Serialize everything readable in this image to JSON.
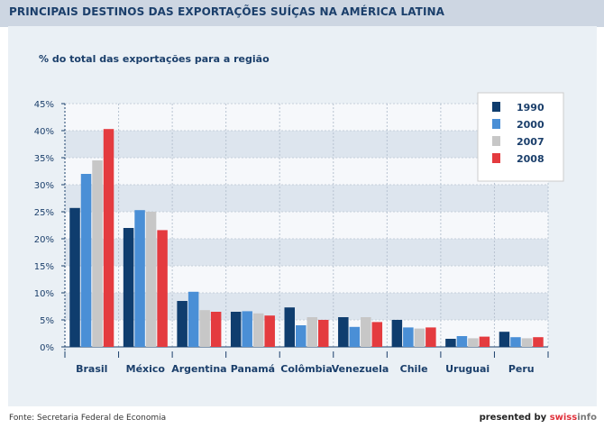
{
  "header": {
    "title": "PRINCIPAIS DESTINOS DAS EXPORTAÇÕES SUÍÇAS NA AMÉRICA LATINA"
  },
  "footer": {
    "source": "Fonte: Secretaria Federal de Economia",
    "presented_by": "presented by",
    "brand_swiss": "swiss",
    "brand_info": "info"
  },
  "chart_data": {
    "type": "bar",
    "title": "% do total das exportações para a região",
    "xlabel": "",
    "ylabel": "",
    "ylim": [
      0,
      45
    ],
    "ytick_labels": [
      "0%",
      "5%",
      "10%",
      "15%",
      "20%",
      "25%",
      "30%",
      "35%",
      "40%",
      "45%"
    ],
    "grid": true,
    "legend_position": "top-right",
    "categories": [
      "Brasil",
      "México",
      "Argentina",
      "Panamá",
      "Colômbia",
      "Venezuela",
      "Chile",
      "Uruguai",
      "Peru"
    ],
    "series": [
      {
        "name": "1990",
        "color": "#0f3d6e",
        "values": [
          25.7,
          22.0,
          8.5,
          6.5,
          7.3,
          5.5,
          5.0,
          1.5,
          2.8
        ]
      },
      {
        "name": "2000",
        "color": "#4a8fd6",
        "values": [
          32.0,
          25.3,
          10.2,
          6.6,
          4.0,
          3.7,
          3.6,
          2.0,
          1.8
        ]
      },
      {
        "name": "2007",
        "color": "#c7c7c7",
        "values": [
          34.5,
          25.0,
          6.8,
          6.2,
          5.5,
          5.5,
          3.4,
          1.6,
          1.6
        ]
      },
      {
        "name": "2008",
        "color": "#e43b3f",
        "values": [
          40.3,
          21.6,
          6.5,
          5.8,
          5.0,
          4.6,
          3.6,
          1.9,
          1.8
        ]
      }
    ]
  }
}
